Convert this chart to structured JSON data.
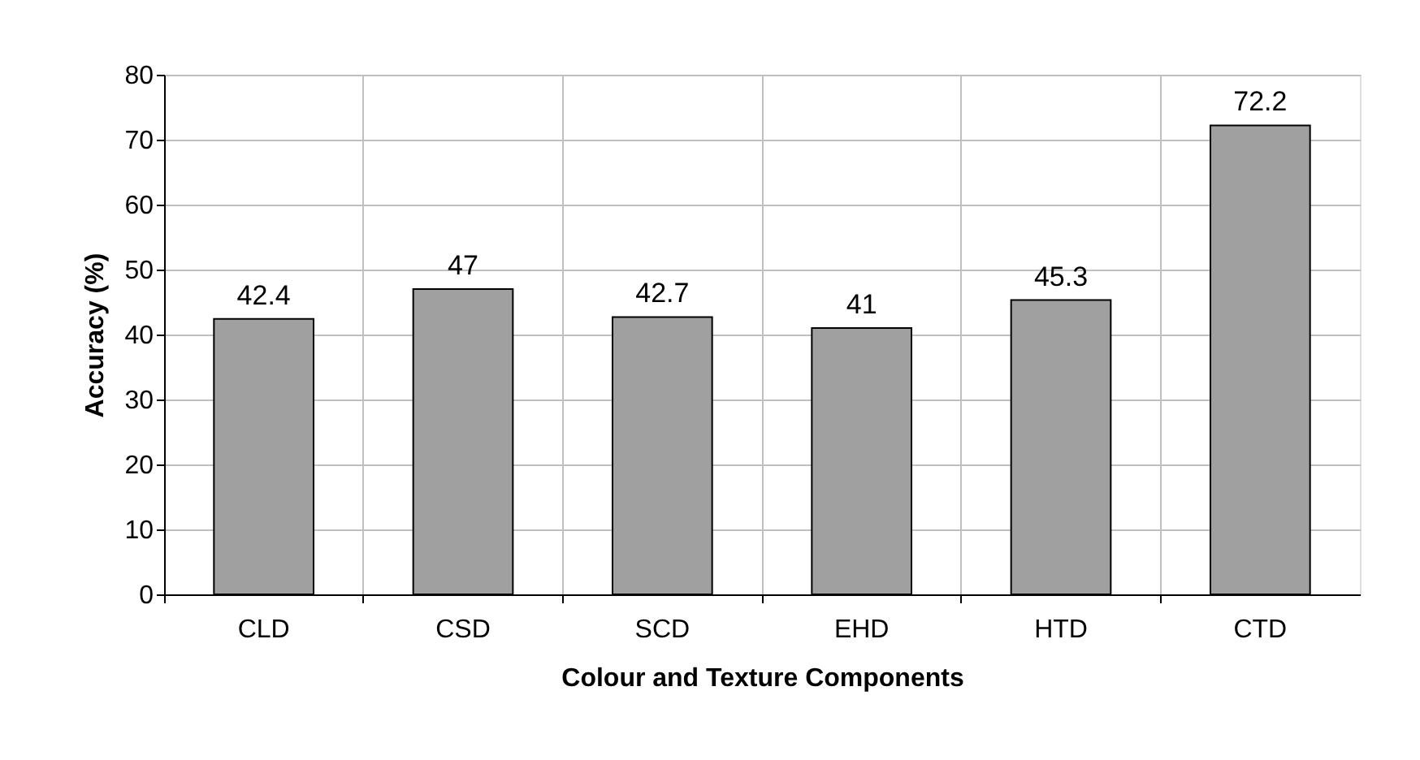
{
  "chart_data": {
    "type": "bar",
    "xlabel": "Colour and Texture Components",
    "ylabel": "Accuracy (%)",
    "categories": [
      "CLD",
      "CSD",
      "SCD",
      "EHD",
      "HTD",
      "CTD"
    ],
    "values": [
      42.4,
      47,
      42.7,
      41,
      45.3,
      72.2
    ],
    "color": "#a0a0a0",
    "ylim": [
      0,
      80
    ],
    "yticks": [
      0,
      10,
      20,
      30,
      40,
      50,
      60,
      70,
      80
    ],
    "grid": true,
    "data_labels": true
  }
}
